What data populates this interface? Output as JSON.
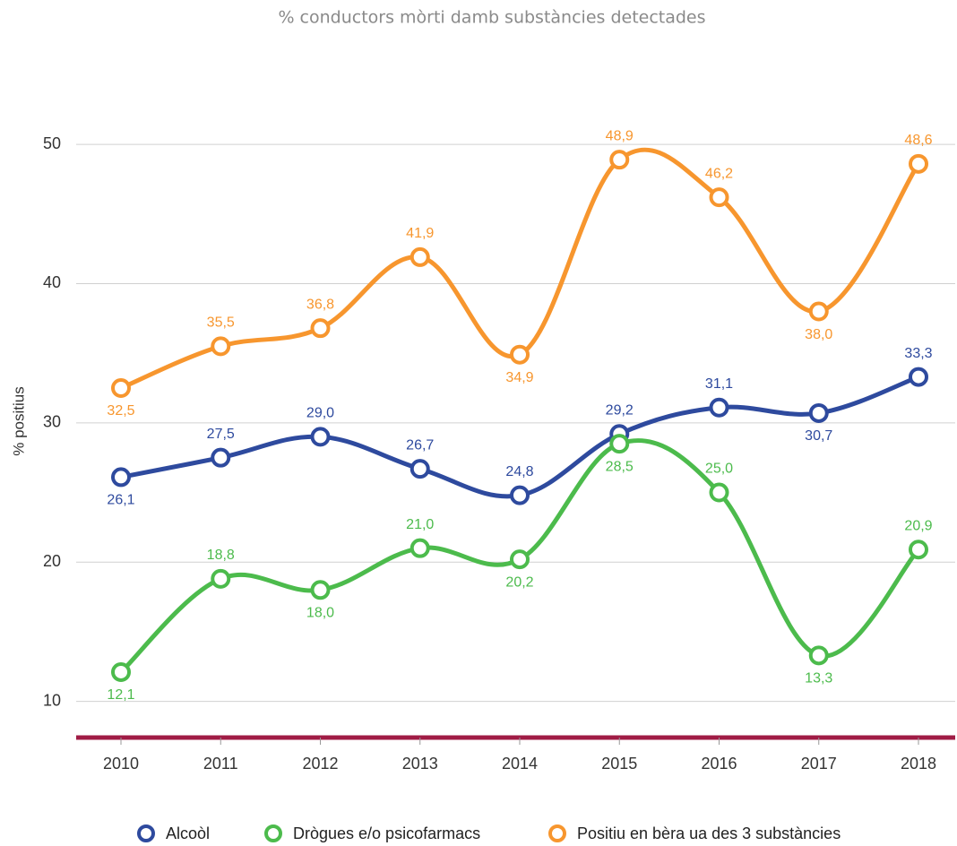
{
  "chart_data": {
    "type": "line",
    "title": "% conductors mòrti damb substàncies detectades",
    "ylabel": "% positius",
    "categories": [
      "2010",
      "2011",
      "2012",
      "2013",
      "2014",
      "2015",
      "2016",
      "2017",
      "2018"
    ],
    "series": [
      {
        "name": "Alcoòl",
        "color": "#2e4a9e",
        "values": [
          26.1,
          27.5,
          29.0,
          26.7,
          24.8,
          29.2,
          31.1,
          30.7,
          33.3
        ],
        "value_labels": [
          "26,1",
          "27,5",
          "29,0",
          "26,7",
          "24,8",
          "29,2",
          "31,1",
          "30,7",
          "33,3"
        ]
      },
      {
        "name": "Drògues e/o psicofarmacs",
        "color": "#4cbb4c",
        "values": [
          12.1,
          18.8,
          18.0,
          21.0,
          20.2,
          28.5,
          25.0,
          13.3,
          20.9
        ],
        "value_labels": [
          "12,1",
          "18,8",
          "18,0",
          "21,0",
          "20,2",
          "28,5",
          "25,0",
          "13,3",
          "20,9"
        ]
      },
      {
        "name": "Positiu en bèra ua des 3 substàncies",
        "color": "#f7962e",
        "values": [
          32.5,
          35.5,
          36.8,
          41.9,
          34.9,
          48.9,
          46.2,
          38.0,
          48.6
        ],
        "value_labels": [
          "32,5",
          "35,5",
          "36,8",
          "41,9",
          "34,9",
          "48,9",
          "46,2",
          "38,0",
          "48,6"
        ]
      }
    ],
    "ylim": [
      7.4,
      52
    ],
    "yticks": [
      10,
      20,
      30,
      40,
      50
    ],
    "grid": true,
    "legend": "bottom"
  }
}
